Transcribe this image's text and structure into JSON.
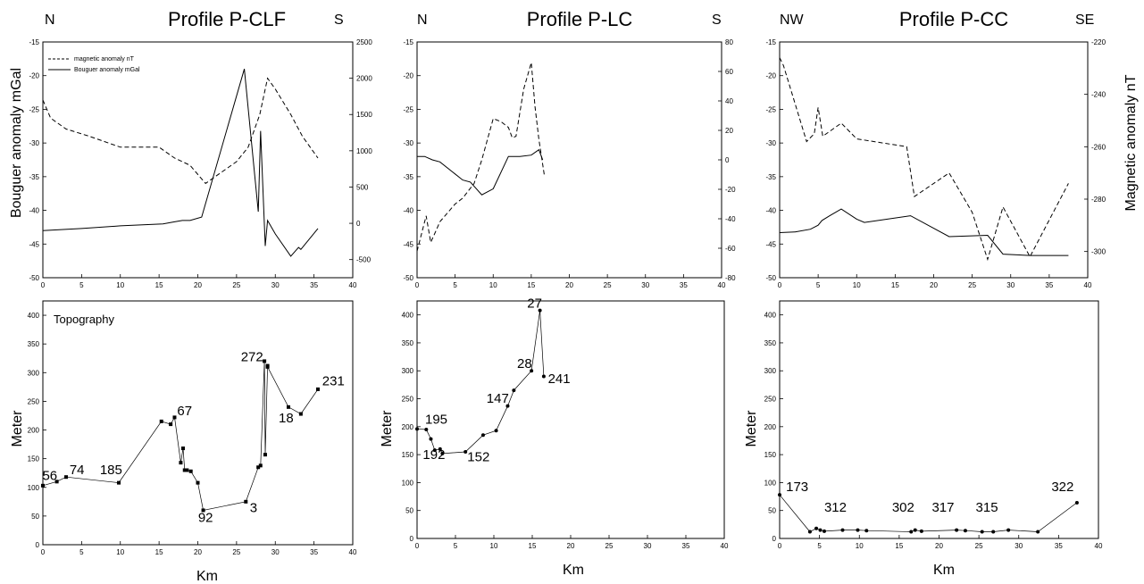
{
  "profiles": [
    {
      "title": "Profile P-CLF",
      "dir_left": "N",
      "dir_right": "S"
    },
    {
      "title": "Profile P-LC",
      "dir_left": "N",
      "dir_right": "S"
    },
    {
      "title": "Profile P-CC",
      "dir_left": "NW",
      "dir_right": "SE"
    }
  ],
  "axis_labels": {
    "bouguer_y": "Bouguer anomaly mGal",
    "magnetic_y": "Magnetic anomaly nT",
    "meter_y": "Meter",
    "km_x": "Km"
  },
  "legend": {
    "magnetic": "magnetic anomaly nT",
    "bouguer": "Bouguer anomaly mGal"
  },
  "topography_label": "Topography",
  "chart_data": [
    {
      "type": "line",
      "title": "Profile P-CLF",
      "panel": "anomaly",
      "xlim": [
        0,
        40
      ],
      "ylim": [
        -50,
        -15
      ],
      "y2lim": [
        -750,
        2500
      ],
      "xticks": [
        0,
        5,
        10,
        15,
        20,
        25,
        30,
        35,
        40
      ],
      "yticks": [
        -50,
        -45,
        -40,
        -35,
        -30,
        -25,
        -20,
        -15
      ],
      "y2ticks": [
        -500,
        0,
        500,
        1000,
        1500,
        2000,
        2500
      ],
      "series": [
        {
          "name": "Bouguer anomaly mGal",
          "axis": "left",
          "style": "solid",
          "x": [
            0,
            5,
            10,
            15.5,
            17,
            18,
            19,
            20.5,
            26,
            27.8,
            28.1,
            28.7,
            29,
            30,
            32,
            33,
            33.3,
            35.5
          ],
          "y": [
            -43,
            -42.7,
            -42.3,
            -42,
            -41.7,
            -41.5,
            -41.5,
            -41,
            -19,
            -40.2,
            -28.2,
            -45.3,
            -41.5,
            -43.5,
            -46.8,
            -45.5,
            -45.8,
            -42.7
          ]
        },
        {
          "name": "magnetic anomaly nT",
          "axis": "right",
          "style": "dashed",
          "x": [
            0,
            1,
            3,
            6,
            10,
            15,
            17,
            19,
            20.2,
            21,
            25,
            26.5,
            28,
            29,
            30,
            32,
            33.5,
            35.5
          ],
          "y": [
            1700,
            1450,
            1300,
            1200,
            1050,
            1050,
            900,
            800,
            650,
            550,
            850,
            1050,
            1500,
            2000,
            1850,
            1500,
            1200,
            900
          ]
        }
      ]
    },
    {
      "type": "line",
      "title": "Profile P-LC",
      "panel": "anomaly",
      "xlim": [
        0,
        40
      ],
      "ylim": [
        -50,
        -15
      ],
      "y2lim": [
        -80,
        80
      ],
      "xticks": [
        0,
        5,
        10,
        15,
        20,
        25,
        30,
        35,
        40
      ],
      "yticks": [
        -50,
        -45,
        -40,
        -35,
        -30,
        -25,
        -20,
        -15
      ],
      "y2ticks": [
        -80,
        -60,
        -40,
        -20,
        0,
        20,
        40,
        60,
        80
      ],
      "series": [
        {
          "name": "Bouguer anomaly mGal",
          "axis": "left",
          "style": "solid",
          "x": [
            0,
            1,
            2,
            3,
            6,
            7,
            8.5,
            10,
            12,
            13.5,
            15,
            16,
            16.5
          ],
          "y": [
            -32,
            -32,
            -32.5,
            -32.8,
            -35.5,
            -35.8,
            -37.7,
            -36.8,
            -32,
            -32,
            -31.8,
            -31,
            -32.5
          ]
        },
        {
          "name": "magnetic anomaly nT",
          "axis": "right",
          "style": "dashed",
          "x": [
            0,
            0.8,
            1.2,
            1.8,
            2.5,
            3,
            5,
            6,
            7.5,
            8.5,
            10,
            11,
            12,
            12.5,
            13,
            14,
            15,
            15.5,
            16,
            16.7
          ],
          "y": [
            -62,
            -46,
            -38,
            -56,
            -48,
            -42,
            -30,
            -26,
            -16,
            0,
            28,
            26,
            22,
            15,
            16,
            48,
            66,
            36,
            14,
            -10
          ]
        }
      ]
    },
    {
      "type": "line",
      "title": "Profile P-CC",
      "panel": "anomaly",
      "xlim": [
        0,
        40
      ],
      "ylim": [
        -50,
        -15
      ],
      "y2lim": [
        -310,
        -220
      ],
      "xticks": [
        0,
        5,
        10,
        15,
        20,
        25,
        30,
        35,
        40
      ],
      "yticks": [
        -50,
        -45,
        -40,
        -35,
        -30,
        -25,
        -20,
        -15
      ],
      "y2ticks": [
        -300,
        -280,
        -260,
        -240,
        -220
      ],
      "series": [
        {
          "name": "Bouguer anomaly mGal",
          "axis": "left",
          "style": "solid",
          "x": [
            0,
            2,
            4,
            5,
            5.5,
            6.5,
            8,
            10,
            11,
            17,
            22,
            27,
            29,
            32.5,
            37.5
          ],
          "y": [
            -43.3,
            -43.2,
            -42.8,
            -42.2,
            -41.5,
            -40.8,
            -39.8,
            -41.3,
            -41.8,
            -40.8,
            -43.9,
            -43.7,
            -46.5,
            -46.7,
            -46.7
          ]
        },
        {
          "name": "magnetic anomaly nT",
          "axis": "right",
          "style": "dashed",
          "x": [
            0,
            0.5,
            3.5,
            4.5,
            5,
            5.6,
            8,
            10,
            16.5,
            17.5,
            22,
            25,
            27,
            29,
            32.5,
            37.5
          ],
          "y": [
            -226,
            -229,
            -258,
            -255,
            -245,
            -256,
            -251,
            -257,
            -260,
            -279,
            -270,
            -285,
            -303,
            -283,
            -302,
            -274
          ]
        }
      ]
    },
    {
      "type": "line",
      "title": "Topography",
      "panel": "topography",
      "xlabel": "Km",
      "ylabel": "Meter",
      "xlim": [
        0,
        40
      ],
      "ylim": [
        0,
        425
      ],
      "xticks": [
        0,
        5,
        10,
        15,
        20,
        25,
        30,
        35,
        40
      ],
      "yticks": [
        0,
        50,
        100,
        150,
        200,
        250,
        300,
        350,
        400
      ],
      "series": [
        {
          "name": "",
          "style": "markers",
          "x": [
            0,
            1.8,
            3,
            9.8,
            15.3,
            16.5,
            17,
            17.8,
            18.1,
            18.3,
            18.6,
            19.1,
            20,
            20.7,
            26.2,
            27.8,
            28.1,
            28.6,
            28.7,
            29,
            29,
            31.7,
            33.3,
            35.5
          ],
          "y": [
            103,
            110,
            118,
            108,
            215,
            210,
            222,
            143,
            168,
            130,
            130,
            128,
            108,
            60,
            75,
            135,
            138,
            320,
            157,
            312,
            310,
            240,
            228,
            271
          ]
        }
      ],
      "point_labels": [
        {
          "text": "56",
          "x": 0.9,
          "y": 113
        },
        {
          "text": "74",
          "x": 4.4,
          "y": 123
        },
        {
          "text": "185",
          "x": 8.8,
          "y": 123
        },
        {
          "text": "67",
          "x": 18.3,
          "y": 226
        },
        {
          "text": "92",
          "x": 21,
          "y": 40
        },
        {
          "text": "3",
          "x": 27.2,
          "y": 57
        },
        {
          "text": "272",
          "x": 27,
          "y": 320
        },
        {
          "text": "18",
          "x": 31.4,
          "y": 213
        },
        {
          "text": "231",
          "x": 37.5,
          "y": 278
        }
      ]
    },
    {
      "type": "line",
      "title": "",
      "panel": "topography",
      "xlabel": "Km",
      "ylabel": "Meter",
      "xlim": [
        0,
        40
      ],
      "ylim": [
        0,
        425
      ],
      "xticks": [
        0,
        5,
        10,
        15,
        20,
        25,
        30,
        35,
        40
      ],
      "yticks": [
        0,
        50,
        100,
        150,
        200,
        250,
        300,
        350,
        400
      ],
      "series": [
        {
          "name": "",
          "style": "markers",
          "x": [
            0,
            1.2,
            1.8,
            2.3,
            3,
            3.3,
            6.3,
            8.6,
            10.3,
            11.8,
            12.6,
            14.9,
            16,
            16.5
          ],
          "y": [
            196,
            195,
            178,
            158,
            160,
            152,
            155,
            185,
            193,
            237,
            265,
            300,
            408,
            290
          ]
        }
      ],
      "point_labels": [
        {
          "text": "195",
          "x": 2.5,
          "y": 205
        },
        {
          "text": "192",
          "x": 2.2,
          "y": 142
        },
        {
          "text": "152",
          "x": 8,
          "y": 138
        },
        {
          "text": "147",
          "x": 10.5,
          "y": 243
        },
        {
          "text": "28",
          "x": 14,
          "y": 305
        },
        {
          "text": "27",
          "x": 15.3,
          "y": 413
        },
        {
          "text": "241",
          "x": 18.5,
          "y": 278
        }
      ]
    },
    {
      "type": "line",
      "title": "",
      "panel": "topography",
      "xlabel": "Km",
      "ylabel": "Meter",
      "xlim": [
        0,
        40
      ],
      "ylim": [
        0,
        425
      ],
      "xticks": [
        0,
        5,
        10,
        15,
        20,
        25,
        30,
        35,
        40
      ],
      "yticks": [
        0,
        50,
        100,
        150,
        200,
        250,
        300,
        350,
        400
      ],
      "series": [
        {
          "name": "",
          "style": "markers",
          "x": [
            0,
            3.8,
            4.6,
            5.1,
            5.6,
            7.9,
            9.8,
            10.9,
            16.5,
            17,
            17.8,
            22.2,
            23.3,
            25.4,
            26.8,
            28.7,
            32.4,
            37.3
          ],
          "y": [
            78,
            12,
            18,
            15,
            13,
            15,
            15,
            14,
            12,
            15,
            13,
            15,
            14,
            12,
            12,
            15,
            12,
            64
          ]
        }
      ],
      "point_labels": [
        {
          "text": "173",
          "x": 2.2,
          "y": 85
        },
        {
          "text": "312",
          "x": 7,
          "y": 48
        },
        {
          "text": "302",
          "x": 15.5,
          "y": 48
        },
        {
          "text": "317",
          "x": 20.5,
          "y": 48
        },
        {
          "text": "315",
          "x": 26,
          "y": 48
        },
        {
          "text": "322",
          "x": 35.5,
          "y": 85
        }
      ]
    }
  ]
}
